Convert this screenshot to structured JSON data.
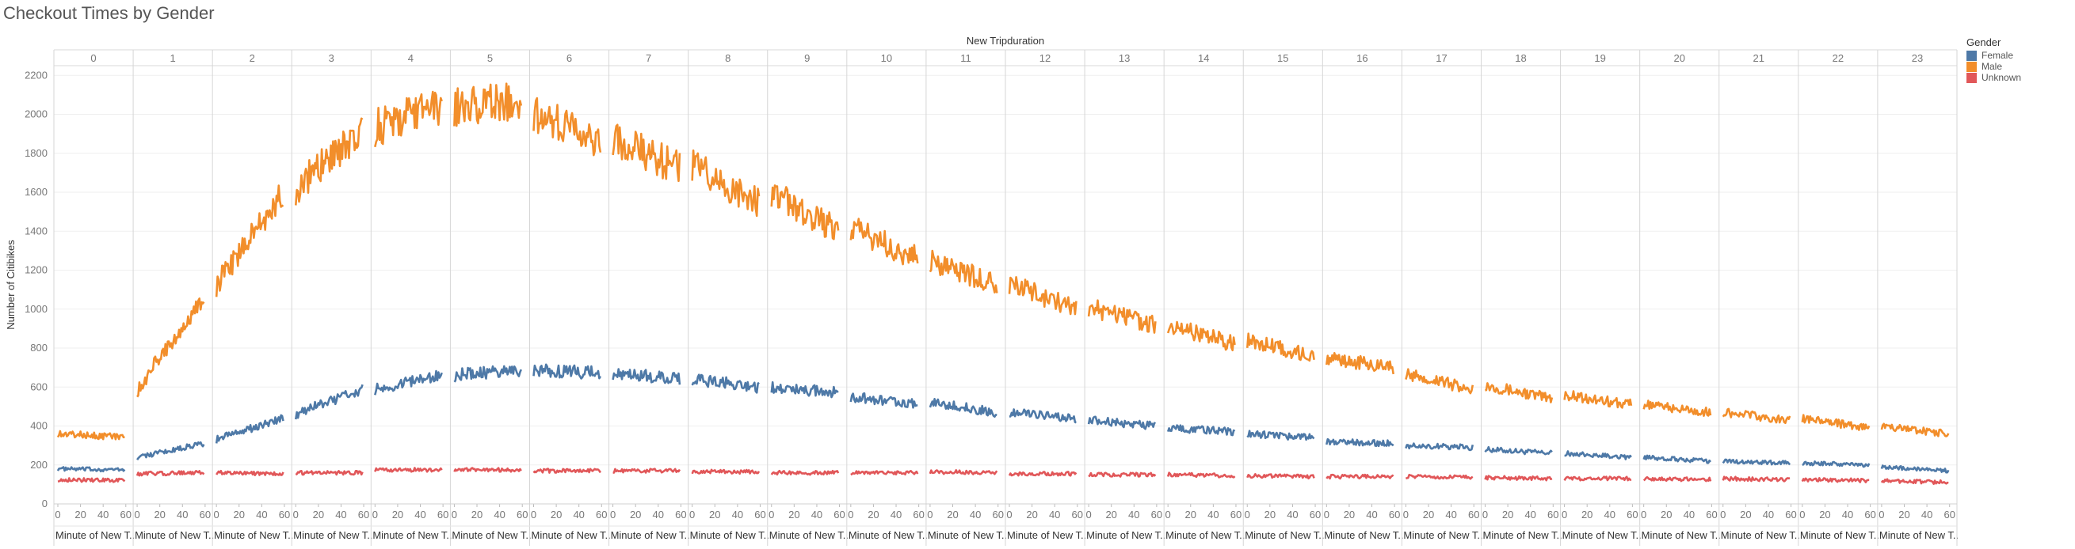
{
  "chart_data": {
    "type": "line",
    "title": "Checkout Times by Gender",
    "ylabel": "Number of Citibikes",
    "header_label": "New Tripduration",
    "panel_xlabel": "Minute of New T..",
    "ylim": [
      0,
      2250
    ],
    "yticks": [
      0,
      200,
      400,
      600,
      800,
      1000,
      1200,
      1400,
      1600,
      1800,
      2000,
      2200
    ],
    "xticks": [
      0,
      20,
      40,
      60
    ],
    "panels": [
      "0",
      "1",
      "2",
      "3",
      "4",
      "5",
      "6",
      "7",
      "8",
      "9",
      "10",
      "11",
      "12",
      "13",
      "14",
      "15",
      "16",
      "17",
      "18",
      "19",
      "20",
      "21",
      "22",
      "23"
    ],
    "legend_title": "Gender",
    "grid": true,
    "series": [
      {
        "name": "Female",
        "color": "#4e79a7",
        "panel_values": [
          [
            180,
            175
          ],
          [
            240,
            310
          ],
          [
            330,
            440
          ],
          [
            460,
            590
          ],
          [
            590,
            660
          ],
          [
            660,
            690
          ],
          [
            690,
            670
          ],
          [
            670,
            640
          ],
          [
            640,
            600
          ],
          [
            600,
            570
          ],
          [
            550,
            510
          ],
          [
            520,
            470
          ],
          [
            470,
            440
          ],
          [
            430,
            400
          ],
          [
            390,
            370
          ],
          [
            360,
            340
          ],
          [
            320,
            310
          ],
          [
            300,
            290
          ],
          [
            280,
            260
          ],
          [
            260,
            240
          ],
          [
            240,
            220
          ],
          [
            220,
            210
          ],
          [
            210,
            200
          ],
          [
            190,
            170
          ]
        ]
      },
      {
        "name": "Male",
        "color": "#f28e2b",
        "panel_values": [
          [
            360,
            345
          ],
          [
            590,
            1060
          ],
          [
            1130,
            1600
          ],
          [
            1620,
            1920
          ],
          [
            1930,
            2050
          ],
          [
            2040,
            2070
          ],
          [
            2010,
            1870
          ],
          [
            1880,
            1720
          ],
          [
            1740,
            1540
          ],
          [
            1600,
            1400
          ],
          [
            1420,
            1260
          ],
          [
            1250,
            1130
          ],
          [
            1130,
            1000
          ],
          [
            1010,
            920
          ],
          [
            920,
            820
          ],
          [
            840,
            760
          ],
          [
            750,
            700
          ],
          [
            670,
            590
          ],
          [
            610,
            540
          ],
          [
            560,
            510
          ],
          [
            510,
            470
          ],
          [
            470,
            430
          ],
          [
            440,
            390
          ],
          [
            400,
            360
          ]
        ]
      },
      {
        "name": "Unknown",
        "color": "#e15759",
        "panel_values": [
          [
            125,
            120
          ],
          [
            155,
            160
          ],
          [
            160,
            155
          ],
          [
            160,
            160
          ],
          [
            175,
            175
          ],
          [
            175,
            175
          ],
          [
            170,
            170
          ],
          [
            170,
            170
          ],
          [
            165,
            165
          ],
          [
            160,
            160
          ],
          [
            160,
            160
          ],
          [
            165,
            160
          ],
          [
            155,
            155
          ],
          [
            150,
            150
          ],
          [
            150,
            145
          ],
          [
            145,
            140
          ],
          [
            140,
            140
          ],
          [
            140,
            135
          ],
          [
            135,
            130
          ],
          [
            130,
            130
          ],
          [
            130,
            125
          ],
          [
            130,
            125
          ],
          [
            125,
            120
          ],
          [
            120,
            110
          ]
        ]
      }
    ]
  }
}
